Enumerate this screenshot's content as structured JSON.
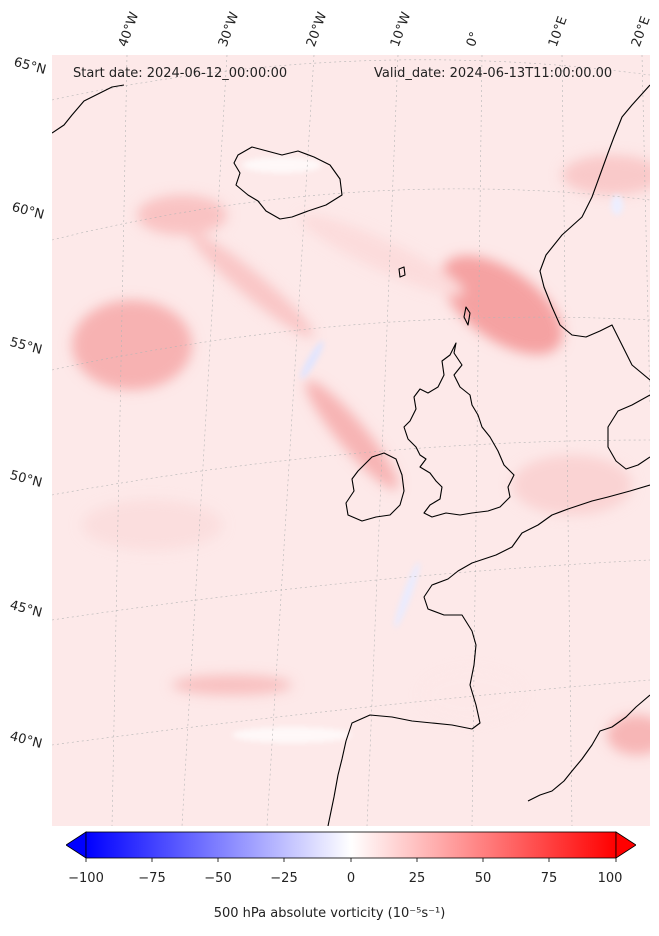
{
  "info": {
    "start": "Start date: 2024-06-12_00:00:00",
    "valid": "Valid_date: 2024-06-13T11:00:00.00"
  },
  "lon_labels": [
    "40°W",
    "30°W",
    "20°W",
    "10°W",
    "0°",
    "10°E",
    "20°E"
  ],
  "lat_labels": [
    "65°N",
    "60°N",
    "55°N",
    "50°N",
    "45°N",
    "40°N"
  ],
  "colorbar": {
    "min": -100,
    "max": 100,
    "ticks": [
      "−100",
      "−75",
      "−50",
      "−25",
      "0",
      "25",
      "50",
      "75",
      "100"
    ],
    "title": "500 hPa absolute vorticity (10⁻⁵s⁻¹)",
    "low_color": "#0000ff",
    "mid_color": "#ffffff",
    "high_color": "#ff0000"
  }
}
